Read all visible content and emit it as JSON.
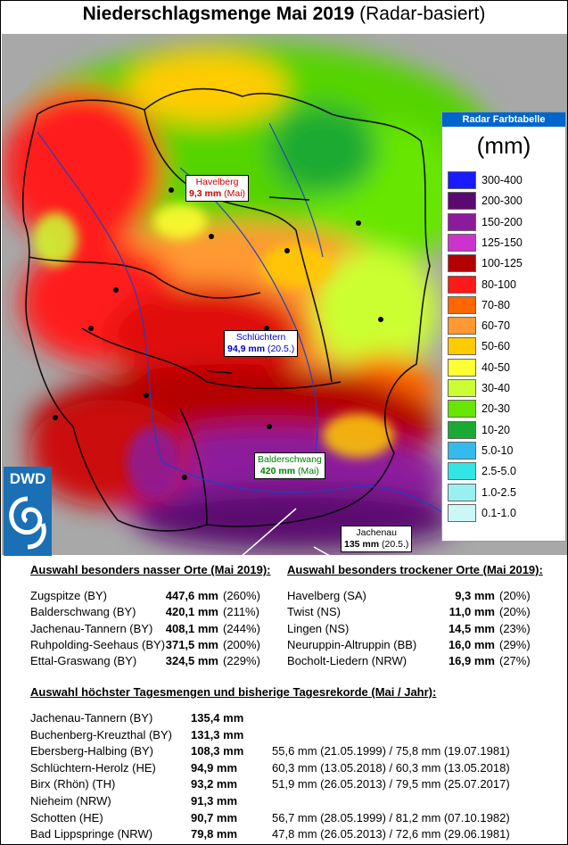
{
  "title": {
    "main": "Niederschlagsmenge Mai 2019",
    "sub": "(Radar-basiert)"
  },
  "map_labels": [
    {
      "place": "Havelberg",
      "value": "9,3 mm",
      "note": "(Mai)",
      "color": "#cc0000"
    },
    {
      "place": "Schlüchtern",
      "value": "94,9 mm",
      "note": "(20.5.)",
      "color": "#0000cc"
    },
    {
      "place": "Balderschwang",
      "value": "420 mm",
      "note": "(Mai)",
      "color": "#008000"
    },
    {
      "place": "Jachenau",
      "value": "135 mm",
      "note": "(20.5.)",
      "color": "#000000"
    }
  ],
  "logo": {
    "text": "DWD"
  },
  "legend": {
    "header": "Radar Farbtabelle",
    "unit": "(mm)",
    "entries": [
      {
        "label": "300-400",
        "color": "#1a1aff"
      },
      {
        "label": "200-300",
        "color": "#5a0a6e"
      },
      {
        "label": "150-200",
        "color": "#8c1a9c"
      },
      {
        "label": "125-150",
        "color": "#cc33cc"
      },
      {
        "label": "100-125",
        "color": "#b30000"
      },
      {
        "label": "80-100",
        "color": "#ff1a1a"
      },
      {
        "label": "70-80",
        "color": "#ff6600"
      },
      {
        "label": "60-70",
        "color": "#ff9933"
      },
      {
        "label": "50-60",
        "color": "#ffcc00"
      },
      {
        "label": "40-50",
        "color": "#ffff33"
      },
      {
        "label": "30-40",
        "color": "#ccff33"
      },
      {
        "label": "20-30",
        "color": "#66e600"
      },
      {
        "label": "10-20",
        "color": "#1aaa33"
      },
      {
        "label": "5.0-10",
        "color": "#33bbee"
      },
      {
        "label": "2.5-5.0",
        "color": "#33e6e6"
      },
      {
        "label": "1.0-2.5",
        "color": "#99f0f0"
      },
      {
        "label": "0.1-1.0",
        "color": "#ccf7f7"
      }
    ]
  },
  "wet": {
    "title": "Auswahl besonders nasser Orte (Mai 2019):",
    "rows": [
      {
        "place": "Zugspitze (BY)",
        "value": "447,6 mm",
        "pct": "(260%)"
      },
      {
        "place": "Balderschwang (BY)",
        "value": "420,1 mm",
        "pct": "(211%)"
      },
      {
        "place": "Jachenau-Tannern (BY)",
        "value": "408,1 mm",
        "pct": "(244%)"
      },
      {
        "place": "Ruhpolding-Seehaus (BY)",
        "value": "371,5 mm",
        "pct": "(200%)"
      },
      {
        "place": "Ettal-Graswang (BY)",
        "value": "324,5 mm",
        "pct": "(229%)"
      }
    ]
  },
  "dry": {
    "title": "Auswahl besonders trockener Orte (Mai 2019):",
    "rows": [
      {
        "place": "Havelberg (SA)",
        "value": "9,3 mm",
        "pct": "(20%)"
      },
      {
        "place": "Twist (NS)",
        "value": "11,0 mm",
        "pct": "(20%)"
      },
      {
        "place": "Lingen (NS)",
        "value": "14,5 mm",
        "pct": "(23%)"
      },
      {
        "place": "Neuruppin-Altruppin (BB)",
        "value": "16,0 mm",
        "pct": "(29%)"
      },
      {
        "place": "Bocholt-Liedern (NRW)",
        "value": "16,9 mm",
        "pct": "(27%)"
      }
    ]
  },
  "daily": {
    "title": "Auswahl höchster Tagesmengen und bisherige Tagesrekorde (Mai / Jahr):",
    "rows": [
      {
        "place": "Jachenau-Tannern (BY)",
        "value": "135,4 mm",
        "record": ""
      },
      {
        "place": "Buchenberg-Kreuzthal (BY)",
        "value": "131,3 mm",
        "record": ""
      },
      {
        "place": "Ebersberg-Halbing (BY)",
        "value": "108,3 mm",
        "record": "55,6 mm (21.05.1999)  /  75,8 mm (19.07.1981)"
      },
      {
        "place": "Schlüchtern-Herolz (HE)",
        "value": "94,9 mm",
        "record": "60,3 mm (13.05.2018)  /  60,3 mm (13.05.2018)"
      },
      {
        "place": "Birx (Rhön) (TH)",
        "value": "93,2 mm",
        "record": "51,9 mm (26.05.2013)  /  79,5 mm (25.07.2017)"
      },
      {
        "place": "Nieheim (NRW)",
        "value": "91,3 mm",
        "record": ""
      },
      {
        "place": "Schotten (HE)",
        "value": "90,7 mm",
        "record": "56,7 mm (28.05.1999)  /  81,2 mm (07.10.1982)"
      },
      {
        "place": "Bad Lippspringe (NRW)",
        "value": "79,8 mm",
        "record": "47,8 mm (26.05.2013)  /  72,6 mm (29.06.1981)"
      }
    ]
  }
}
